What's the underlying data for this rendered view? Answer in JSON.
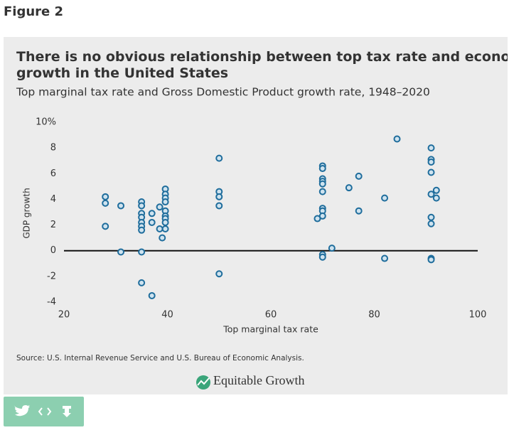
{
  "figure_label": "Figure 2",
  "source": "Source: U.S. Internal Revenue Service and U.S. Bureau of Economic Analysis.",
  "logo": "Equitable Growth",
  "chart_data": {
    "type": "scatter",
    "title": "There is no obvious relationship between top tax rate and economic growth in the United States",
    "subtitle": "Top marginal tax rate and Gross Domestic Product growth rate, 1948–2020",
    "x_label": "Top marginal tax rate",
    "y_label": "GDP growth",
    "color": "#1f6d9c",
    "xlim": [
      20,
      100
    ],
    "xticks": [
      20,
      40,
      60,
      80,
      100
    ],
    "ylim": [
      -4,
      10
    ],
    "yticks": [
      -4,
      -2,
      0,
      2,
      4,
      6,
      8,
      {
        "value": 10,
        "label": "10%"
      }
    ],
    "x": [
      28,
      28,
      28,
      31,
      31,
      35,
      35,
      35,
      35,
      35,
      35,
      35,
      35,
      35,
      37,
      37,
      37,
      38.5,
      38.5,
      39,
      39.6,
      39.6,
      39.6,
      39.6,
      39.6,
      39.6,
      39.6,
      39.6,
      39.6,
      50,
      50,
      50,
      50,
      50,
      69,
      70,
      70,
      70,
      70,
      70,
      70,
      70,
      70,
      70,
      70,
      70,
      71.8,
      75.1,
      77,
      77,
      82,
      82,
      84.4,
      91,
      91,
      91,
      91,
      91,
      91,
      91,
      91,
      91,
      92,
      92
    ],
    "values": [
      4.2,
      3.7,
      1.9,
      3.5,
      -0.1,
      3.8,
      3.5,
      2.9,
      2.6,
      2.2,
      1.9,
      1.6,
      -0.1,
      -2.5,
      2.9,
      2.2,
      -3.5,
      3.4,
      1.7,
      1.0,
      4.8,
      4.4,
      4.1,
      3.8,
      3.1,
      2.7,
      2.5,
      2.2,
      1.7,
      7.2,
      4.6,
      4.2,
      3.5,
      -1.8,
      2.5,
      6.6,
      6.4,
      5.6,
      5.4,
      5.2,
      4.6,
      3.3,
      3.1,
      2.7,
      -0.3,
      -0.5,
      0.2,
      4.9,
      5.8,
      3.1,
      4.1,
      -0.6,
      8.7,
      8.0,
      7.1,
      6.9,
      6.1,
      4.4,
      2.6,
      2.1,
      -0.6,
      -0.7,
      4.7,
      4.1
    ]
  }
}
